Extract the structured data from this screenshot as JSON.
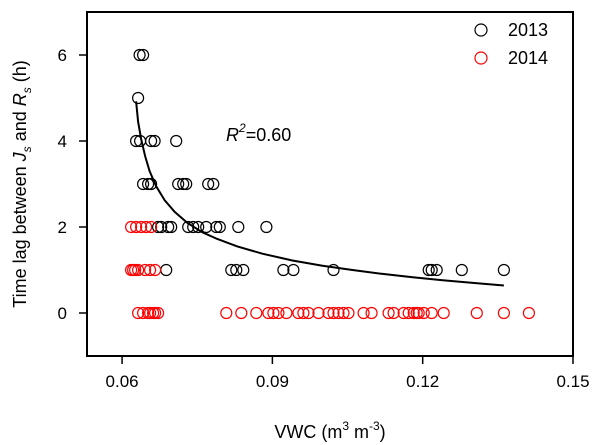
{
  "chart_data": {
    "type": "scatter",
    "xlabel": {
      "main": "VWC (m",
      "sup1": "3",
      "mid": " m",
      "sup2": "-3",
      "end": ")"
    },
    "ylabel": {
      "main": "Time lag between ",
      "j": "J",
      "j_sub": "s",
      "and": " and ",
      "r": "R",
      "r_sub": "s",
      "unit": " (h)"
    },
    "xlim": [
      0.053,
      0.15
    ],
    "ylim": [
      -1,
      7
    ],
    "xticks": [
      {
        "value": 0.06,
        "label": "0.06"
      },
      {
        "value": 0.09,
        "label": "0.09"
      },
      {
        "value": 0.12,
        "label": "0.12"
      },
      {
        "value": 0.15,
        "label": "0.15"
      }
    ],
    "yticks": [
      {
        "value": 0,
        "label": "0"
      },
      {
        "value": 2,
        "label": "2"
      },
      {
        "value": 4,
        "label": "4"
      },
      {
        "value": 6,
        "label": "6"
      }
    ],
    "annotation": {
      "r": "R",
      "sup": "2",
      "text": "=0.60",
      "x": 0.0745,
      "y": 4.1
    },
    "legend_position": "top-right",
    "series": [
      {
        "name": "2013",
        "color": "#000000",
        "points": [
          [
            0.0635,
            6
          ],
          [
            0.0642,
            6
          ],
          [
            0.0632,
            5
          ],
          [
            0.0628,
            4
          ],
          [
            0.0636,
            4
          ],
          [
            0.0658,
            4
          ],
          [
            0.0665,
            4
          ],
          [
            0.0708,
            4
          ],
          [
            0.0642,
            3
          ],
          [
            0.0652,
            3
          ],
          [
            0.0658,
            3
          ],
          [
            0.0712,
            3
          ],
          [
            0.0722,
            3
          ],
          [
            0.0728,
            3
          ],
          [
            0.0772,
            3
          ],
          [
            0.0782,
            3
          ],
          [
            0.0672,
            2
          ],
          [
            0.0678,
            2
          ],
          [
            0.0692,
            2
          ],
          [
            0.0698,
            2
          ],
          [
            0.0732,
            2
          ],
          [
            0.0742,
            2
          ],
          [
            0.0752,
            2
          ],
          [
            0.0768,
            2
          ],
          [
            0.0788,
            2
          ],
          [
            0.0795,
            2
          ],
          [
            0.0832,
            2
          ],
          [
            0.0888,
            2
          ],
          [
            0.0688,
            1
          ],
          [
            0.0818,
            1
          ],
          [
            0.0828,
            1
          ],
          [
            0.0842,
            1
          ],
          [
            0.0922,
            1
          ],
          [
            0.0942,
            1
          ],
          [
            0.1022,
            1
          ],
          [
            0.1212,
            1
          ],
          [
            0.1218,
            1
          ],
          [
            0.1228,
            1
          ],
          [
            0.1278,
            1
          ],
          [
            0.1362,
            1
          ]
        ]
      },
      {
        "name": "2014",
        "color": "#ff0000",
        "points": [
          [
            0.0618,
            2
          ],
          [
            0.0628,
            2
          ],
          [
            0.0638,
            2
          ],
          [
            0.0648,
            2
          ],
          [
            0.0658,
            2
          ],
          [
            0.0618,
            1
          ],
          [
            0.0622,
            1
          ],
          [
            0.0626,
            1
          ],
          [
            0.0632,
            1
          ],
          [
            0.0646,
            1
          ],
          [
            0.0656,
            1
          ],
          [
            0.0666,
            1
          ],
          [
            0.0632,
            0
          ],
          [
            0.0642,
            0
          ],
          [
            0.0652,
            0
          ],
          [
            0.0656,
            0
          ],
          [
            0.0662,
            0
          ],
          [
            0.0666,
            0
          ],
          [
            0.0672,
            0
          ],
          [
            0.0808,
            0
          ],
          [
            0.0838,
            0
          ],
          [
            0.0868,
            0
          ],
          [
            0.0892,
            0
          ],
          [
            0.0902,
            0
          ],
          [
            0.0912,
            0
          ],
          [
            0.0928,
            0
          ],
          [
            0.0952,
            0
          ],
          [
            0.0962,
            0
          ],
          [
            0.0972,
            0
          ],
          [
            0.0992,
            0
          ],
          [
            0.1012,
            0
          ],
          [
            0.1022,
            0
          ],
          [
            0.1032,
            0
          ],
          [
            0.1042,
            0
          ],
          [
            0.1052,
            0
          ],
          [
            0.1082,
            0
          ],
          [
            0.1098,
            0
          ],
          [
            0.1132,
            0
          ],
          [
            0.1142,
            0
          ],
          [
            0.1162,
            0
          ],
          [
            0.1172,
            0
          ],
          [
            0.1182,
            0
          ],
          [
            0.1188,
            0
          ],
          [
            0.1192,
            0
          ],
          [
            0.1202,
            0
          ],
          [
            0.1218,
            0
          ],
          [
            0.1242,
            0
          ],
          [
            0.1308,
            0
          ],
          [
            0.1362,
            0
          ],
          [
            0.1412,
            0
          ]
        ]
      }
    ],
    "fit_curve": {
      "color": "#000000",
      "points": [
        [
          0.0628,
          4.92
        ],
        [
          0.0632,
          4.45
        ],
        [
          0.0638,
          4.05
        ],
        [
          0.0646,
          3.65
        ],
        [
          0.0655,
          3.3
        ],
        [
          0.0668,
          2.95
        ],
        [
          0.0685,
          2.62
        ],
        [
          0.0705,
          2.35
        ],
        [
          0.073,
          2.1
        ],
        [
          0.076,
          1.88
        ],
        [
          0.079,
          1.72
        ],
        [
          0.083,
          1.55
        ],
        [
          0.088,
          1.38
        ],
        [
          0.094,
          1.22
        ],
        [
          0.1,
          1.1
        ],
        [
          0.106,
          1.0
        ],
        [
          0.112,
          0.91
        ],
        [
          0.118,
          0.83
        ],
        [
          0.124,
          0.76
        ],
        [
          0.13,
          0.7
        ],
        [
          0.1362,
          0.64
        ]
      ]
    }
  }
}
